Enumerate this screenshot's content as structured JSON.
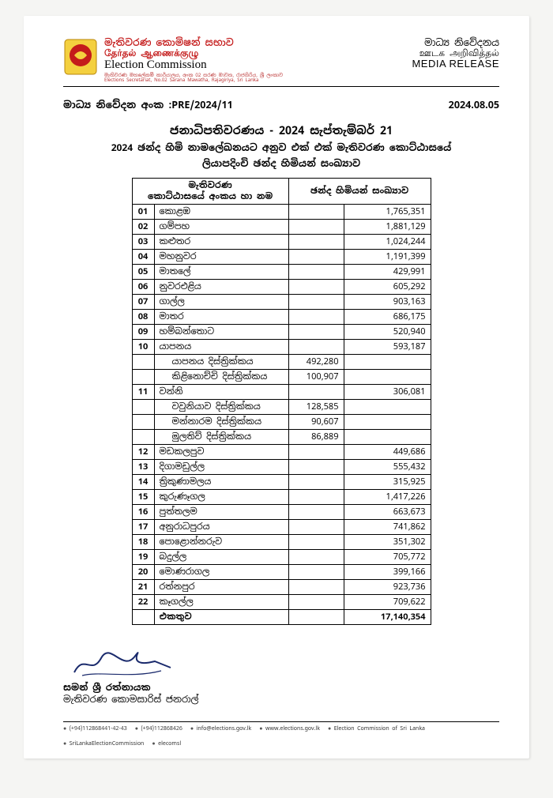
{
  "colors": {
    "accent_red": "#c41b1b",
    "text": "#000000",
    "page_bg": "#ffffff",
    "body_bg": "#f5f5f3",
    "border": "#000000"
  },
  "header": {
    "org_si": "මැතිවරණ කොමිෂන් සභාව",
    "org_ta": "தேர்தல் ஆணைக்குழு",
    "org_en": "Election Commission",
    "addr": "මැතිවරණ මහලේකම් කාර්යාලය, අංක 02 සරණ මාවත, රාජගිරිය, ශ්‍රී ලංකාව\nElections Secretariat, No.02 Sarana Mawatha, Rajagiriya, Sri Lanka",
    "right_si": "මාධ්‍ය නිවේදනය",
    "right_ta": "ஊடக அறிவித்தல்",
    "right_en": "MEDIA RELEASE"
  },
  "ref": {
    "label": "මාධ්‍ය නිවේදන අංක :PRE/2024/11",
    "date": "2024.08.05"
  },
  "title": {
    "l1": "ජනාධිපතිවරණය - 2024 සැප්තැම්බර් 21",
    "l2": "2024 ඡන්ද හිමි නාමලේඛනයට අනුව එක් එක් මැතිවරණ කොට්ඨාසයේ",
    "l3": "ලියාපදිංචි ඡන්ද හිමියන් සංඛ්‍යාව"
  },
  "table": {
    "h1": "මැතිවරණ\nකොට්ඨාසයේ අංකය හා නම",
    "h2": "ඡන්ද හිමියන් සංඛ්‍යාව",
    "rows": [
      {
        "n": "01",
        "name": "කොළඹ",
        "val": "1,765,351"
      },
      {
        "n": "02",
        "name": "ගම්පහ",
        "val": "1,881,129"
      },
      {
        "n": "03",
        "name": "කළුතර",
        "val": "1,024,244"
      },
      {
        "n": "04",
        "name": "මහනුවර",
        "val": "1,191,399"
      },
      {
        "n": "05",
        "name": "මාතලේ",
        "val": "429,991"
      },
      {
        "n": "06",
        "name": "නුවරඑළිය",
        "val": "605,292"
      },
      {
        "n": "07",
        "name": "ගාල්ල",
        "val": "903,163"
      },
      {
        "n": "08",
        "name": "මාතර",
        "val": "686,175"
      },
      {
        "n": "09",
        "name": "හම්බන්තොට",
        "val": "520,940"
      },
      {
        "n": "10",
        "name": "යාපනය",
        "val": "593,187",
        "subs": [
          {
            "name": "යාපනය දිස්ත්‍රික්කය",
            "sub": "492,280"
          },
          {
            "name": "කිළිනොච්චි දිස්ත්‍රික්කය",
            "sub": "100,907"
          }
        ]
      },
      {
        "n": "11",
        "name": "වන්නි",
        "val": "306,081",
        "subs": [
          {
            "name": "වවුනියාව දිස්ත්‍රික්කය",
            "sub": "128,585"
          },
          {
            "name": "මන්නාරම දිස්ත්‍රික්කය",
            "sub": "90,607"
          },
          {
            "name": "මුලතිව් දිස්ත්‍රික්කය",
            "sub": "86,889"
          }
        ]
      },
      {
        "n": "12",
        "name": "මඩකලපුව",
        "val": "449,686"
      },
      {
        "n": "13",
        "name": "දිගාමඩුල්ල",
        "val": "555,432"
      },
      {
        "n": "14",
        "name": "ත්‍රිකුණාමලය",
        "val": "315,925"
      },
      {
        "n": "15",
        "name": "කුරුණෑගල",
        "val": "1,417,226"
      },
      {
        "n": "16",
        "name": "පුත්තලම",
        "val": "663,673"
      },
      {
        "n": "17",
        "name": "අනුරාධපුරය",
        "val": "741,862"
      },
      {
        "n": "18",
        "name": "පොළොන්නරුව",
        "val": "351,302"
      },
      {
        "n": "19",
        "name": "බදුල්ල",
        "val": "705,772"
      },
      {
        "n": "20",
        "name": "මොණරාගල",
        "val": "399,166"
      },
      {
        "n": "21",
        "name": "රත්නපුර",
        "val": "923,736"
      },
      {
        "n": "22",
        "name": "කෑගල්ල",
        "val": "709,622"
      }
    ],
    "total_label": "එකතුව",
    "total_val": "17,140,354"
  },
  "signature": {
    "name": "සමන් ශ්‍රී රත්නායක",
    "title": "මැතිවරණ කොමසාරිස් ජනරාල්"
  },
  "footer": {
    "items": [
      "(+94)112868441-42-43",
      "(+94)112868426",
      "info@elections.gov.lk",
      "www.elections.gov.lk",
      "Election Commission of Sri Lanka",
      "SriLankaElectionCommission",
      "elecomsl"
    ]
  }
}
